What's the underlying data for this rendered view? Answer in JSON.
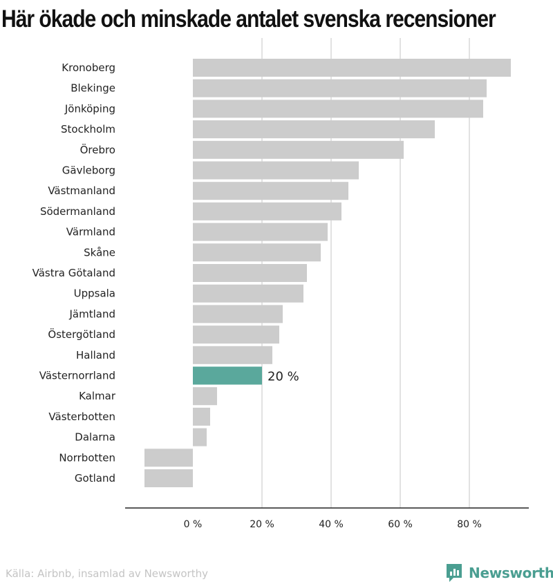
{
  "title": "Här ökade och minskade antalet svenska recensioner",
  "source": "Källa: Airbnb, insamlad av Newsworthy",
  "brand": {
    "name": "Newsworthy",
    "icon": "newsworthy-logo-icon",
    "color": "#4a9e91"
  },
  "colors": {
    "bar": "#cccccc",
    "highlight": "#5aa89c",
    "grid": "#d9d9d9",
    "axis": "#222222"
  },
  "chart_data": {
    "type": "bar",
    "orientation": "horizontal",
    "title": "Här ökade och minskade antalet svenska recensioner",
    "categories": [
      "Kronoberg",
      "Blekinge",
      "Jönköping",
      "Stockholm",
      "Örebro",
      "Gävleborg",
      "Västmanland",
      "Södermanland",
      "Värmland",
      "Skåne",
      "Västra Götaland",
      "Uppsala",
      "Jämtland",
      "Östergötland",
      "Halland",
      "Västernorrland",
      "Kalmar",
      "Västerbotten",
      "Dalarna",
      "Norrbotten",
      "Gotland"
    ],
    "values": [
      92,
      85,
      84,
      70,
      61,
      48,
      45,
      43,
      39,
      37,
      33,
      32,
      26,
      25,
      23,
      20,
      7,
      5,
      4,
      -14,
      -14
    ],
    "highlight": "Västernorrland",
    "data_labels": [
      {
        "category": "Västernorrland",
        "text": "20 %"
      }
    ],
    "xlim": [
      -20,
      97
    ],
    "xticks": [
      0,
      20,
      40,
      60,
      80
    ],
    "xtick_labels": [
      "0 %",
      "20 %",
      "40 %",
      "60 %",
      "80 %"
    ],
    "grid": "vertical",
    "xlabel": "",
    "ylabel": ""
  }
}
